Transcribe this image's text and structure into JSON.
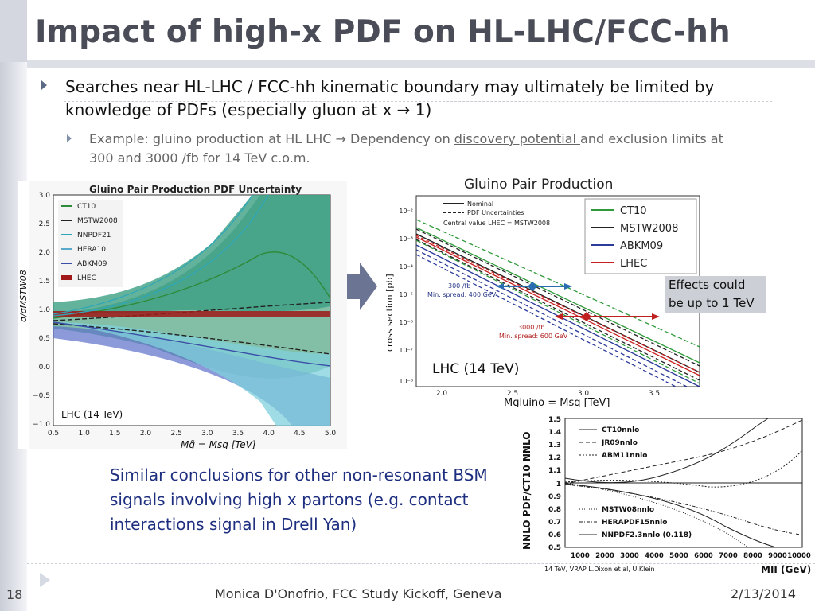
{
  "slide": {
    "title": "Impact of high-x PDF on HL-LHC/FCC-hh",
    "bullet1": "Searches near HL-LHC / FCC-hh kinematic boundary may ultimately be limited by knowledge of PDFs (especially gluon at x → 1)",
    "bullet2_pre": "Example: gluino production at HL LHC → Dependency on ",
    "bullet2_link": "discovery potential ",
    "bullet2_post": "and exclusion limits at 300 and 3000 /fb for 14 TeV c.o.m.",
    "note": "Similar conclusions for other non-resonant BSM signals involving high x partons (e.g. contact interactions signal in Drell Yan)",
    "effects_line1": "Effects could",
    "effects_line2": "be up to 1 TeV",
    "page_number": "18",
    "footer": "Monica D'Onofrio, FCC Study Kickoff, Geneva",
    "date": "2/13/2014"
  },
  "fig1": {
    "title": "Gluino Pair Production PDF Uncertainty",
    "ylabel": "σ/σMSTW08",
    "xlabel": "Mg̃ = Msq [TeV]",
    "tag": "LHC (14 TeV)",
    "yticks": [
      "3.0",
      "2.5",
      "2.0",
      "1.5",
      "1.0",
      "0.5",
      "0.0",
      "−0.5",
      "−1.0"
    ],
    "xticks": [
      "0.5",
      "1.0",
      "1.5",
      "2.0",
      "2.5",
      "3.0",
      "3.5",
      "4.0",
      "4.5",
      "5.0"
    ],
    "legend": [
      "CT10",
      "MSTW2008",
      "NNPDF21",
      "HERA10",
      "ABKM09",
      "LHEC"
    ],
    "colors": [
      "#2e8b3a",
      "#222222",
      "#2fa6b8",
      "#5aa9c9",
      "#3b4ea8",
      "#a01818"
    ]
  },
  "fig2": {
    "title": "Gluino Pair Production",
    "ylabel": "cross section [pb]",
    "xlabel": "Mgluino = Msq [TeV]",
    "tag": "LHC (14 TeV)",
    "yticks": [
      "10⁻²",
      "10⁻³",
      "10⁻⁴",
      "10⁻⁵",
      "10⁻⁶",
      "10⁻⁷",
      "10⁻⁸"
    ],
    "xticks": [
      "2.0",
      "2.5",
      "3.0",
      "3.5"
    ],
    "style_legend": [
      "Nominal",
      "PDF Uncertainties",
      "Central value LHEC = MSTW2008"
    ],
    "legend": [
      "CT10",
      "MSTW2008",
      "ABKM09",
      "LHEC"
    ],
    "colors": [
      "#2e9a3a",
      "#222222",
      "#2c3a9a",
      "#c82020"
    ],
    "ann1_line1": "300 /fb",
    "ann1_line2": "Min. spread: 400 GeV",
    "ann2_line1": "3000 /fb",
    "ann2_line2": "Min. spread: 600 GeV"
  },
  "fig3": {
    "ylabel": "NNLO PDF/CT10 NNLO",
    "xlabel": "MII (GeV)",
    "yticks": [
      "1.5",
      "1.4",
      "1.3",
      "1.2",
      "1.1",
      "1",
      "0.9",
      "0.8",
      "0.7",
      "0.6",
      "0.5"
    ],
    "xticks": [
      "1000",
      "2000",
      "3000",
      "4000",
      "5000",
      "6000",
      "7000",
      "8000",
      "9000",
      "10000"
    ],
    "legend_top": [
      "CT10nnlo",
      "JR09nnlo",
      "ABM11nnlo"
    ],
    "legend_bottom": [
      "MSTW08nnlo",
      "HERAPDF15nnlo",
      "NNPDF2.3nnlo (0.118)"
    ],
    "caption": "14 TeV, VRAP L.Dixon et al, U.Klein"
  }
}
